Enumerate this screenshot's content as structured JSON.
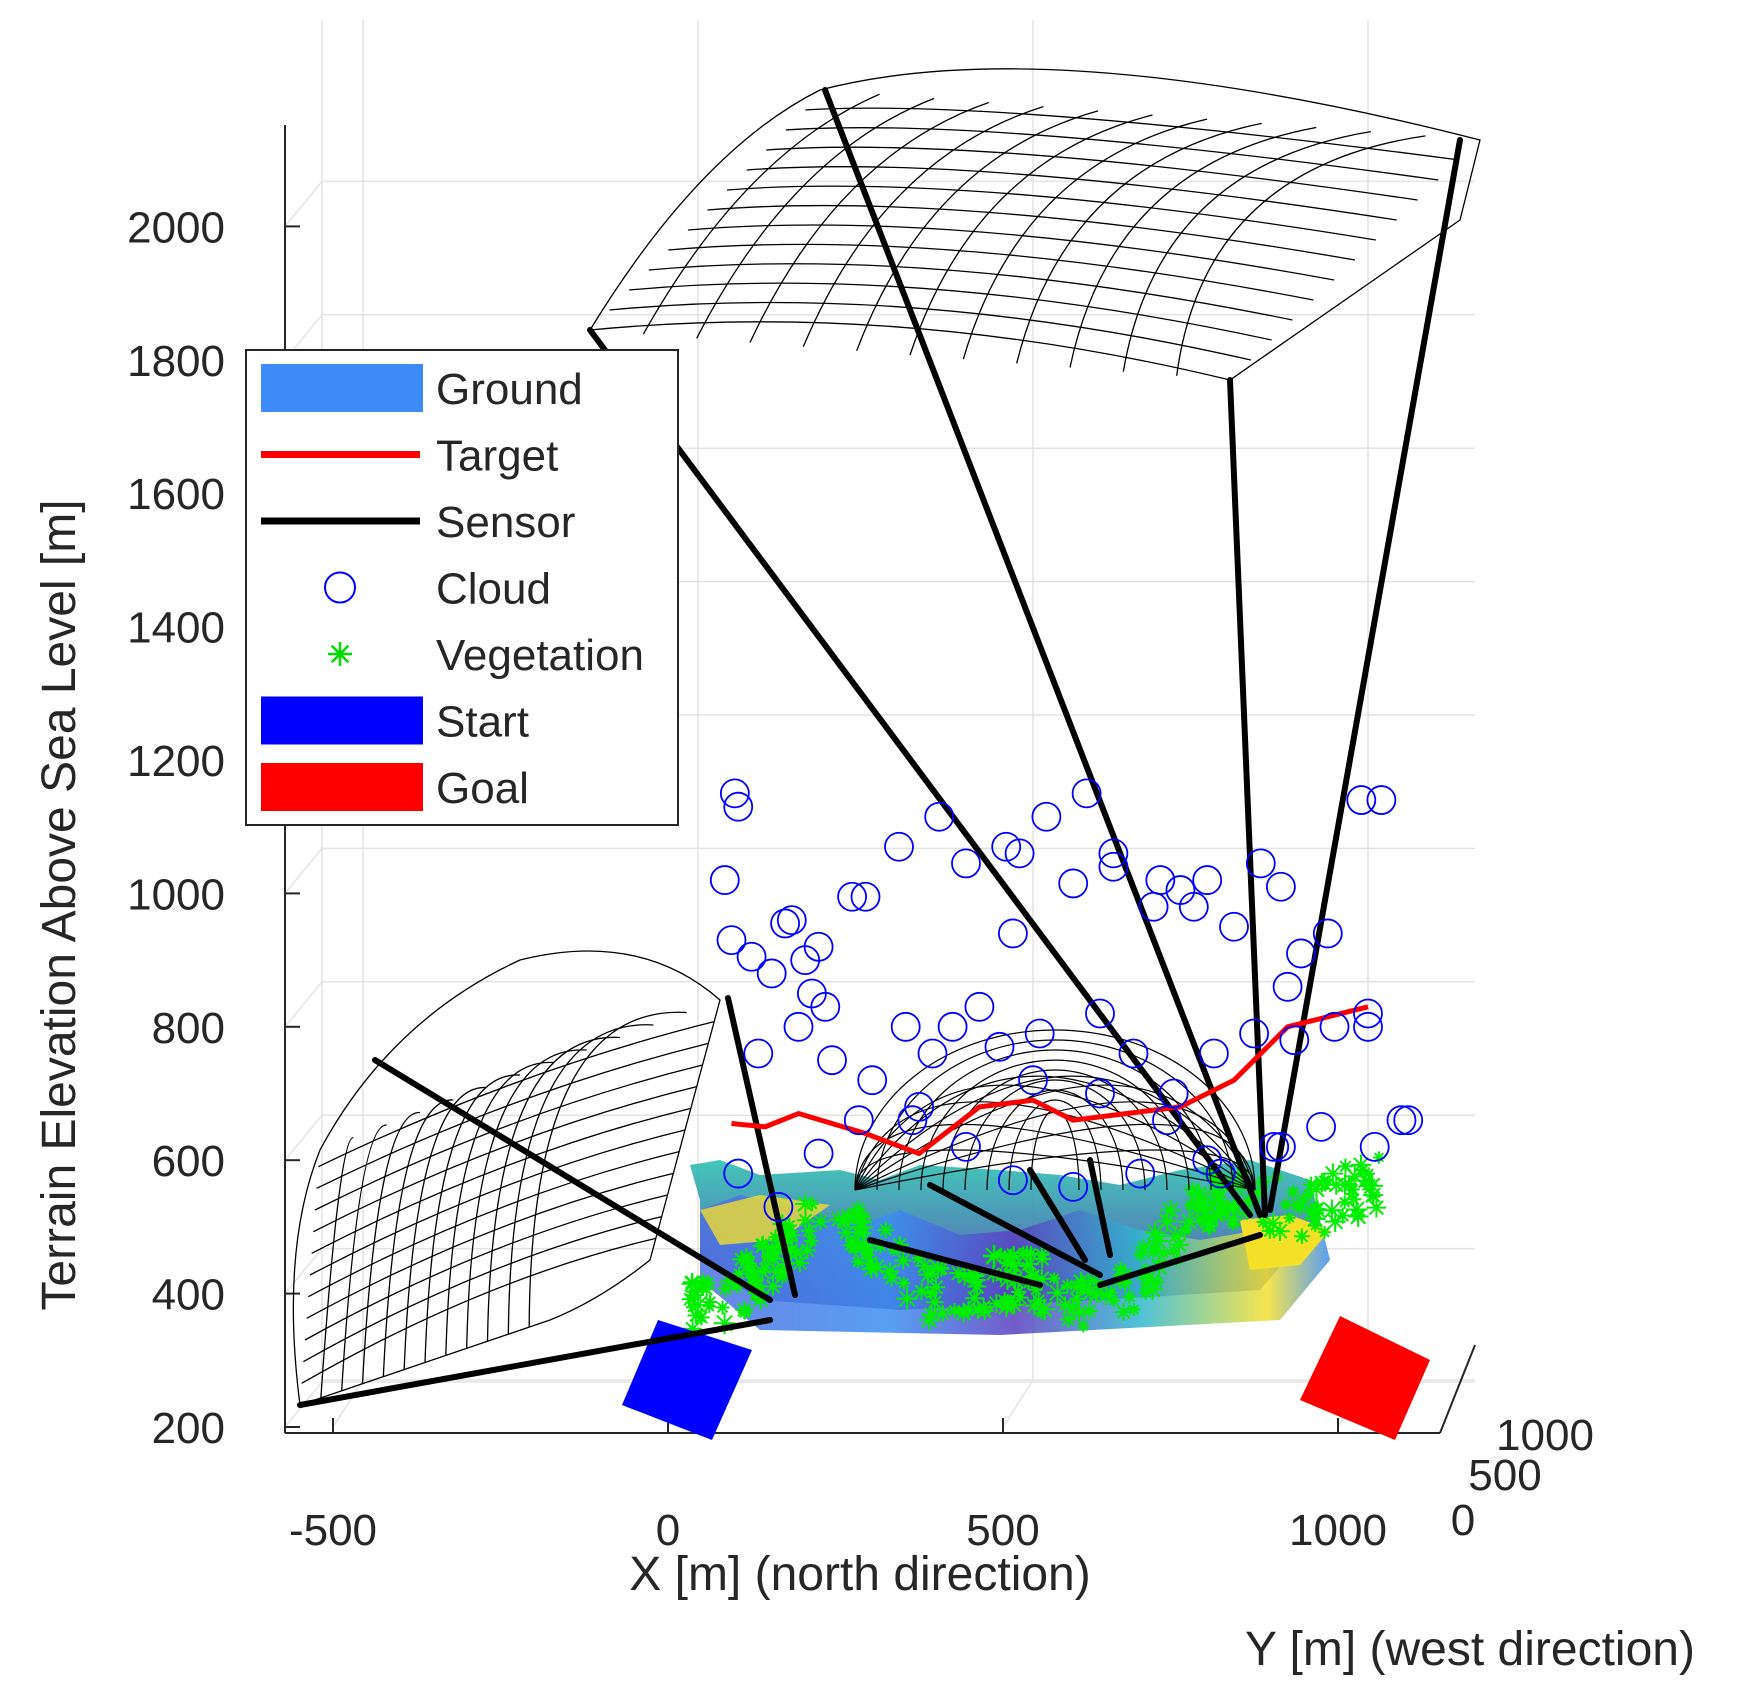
{
  "chart_data": {
    "type": "scatter",
    "title": "",
    "xlabel": "X [m] (north direction)",
    "ylabel": "Y [m] (west direction)",
    "zlabel": "Terrain Elevation Above Sea Level [m]",
    "xlim": [
      -600,
      1150
    ],
    "ylim": [
      0,
      1200
    ],
    "zlim": [
      200,
      2100
    ],
    "x_ticks": [
      -500,
      0,
      500,
      1000
    ],
    "y_ticks": [
      0,
      500,
      1000
    ],
    "z_ticks": [
      200,
      400,
      600,
      800,
      1000,
      1200,
      1400,
      1600,
      1800,
      2000
    ],
    "grid": true,
    "legend_position": "left",
    "legend": [
      {
        "name": "Ground",
        "kind": "patch",
        "color": "#3d8bf8"
      },
      {
        "name": "Target",
        "kind": "line",
        "color": "#ff0000"
      },
      {
        "name": "Sensor",
        "kind": "line",
        "color": "#000000"
      },
      {
        "name": "Cloud",
        "kind": "circle-marker",
        "color": "#0000ff"
      },
      {
        "name": "Vegetation",
        "kind": "star-marker",
        "color": "#00dd00"
      },
      {
        "name": "Start",
        "kind": "patch",
        "color": "#0000ff"
      },
      {
        "name": "Goal",
        "kind": "patch",
        "color": "#ff0000"
      }
    ],
    "series": [
      {
        "name": "Target",
        "type": "line",
        "color": "#ff0000",
        "x": [
          50,
          100,
          150,
          250,
          330,
          420,
          500,
          560,
          640,
          720,
          800,
          880,
          960,
          1000
        ],
        "z": [
          595,
          590,
          610,
          580,
          550,
          620,
          630,
          600,
          610,
          620,
          660,
          740,
          760,
          770
        ]
      },
      {
        "name": "Cloud",
        "type": "scatter",
        "marker": "circle",
        "color": "#0000ff",
        "x": [
          55,
          60,
          40,
          50,
          130,
          140,
          160,
          180,
          190,
          230,
          250,
          300,
          360,
          400,
          460,
          480,
          520,
          580,
          620,
          690,
          720,
          760,
          840,
          870,
          900,
          990,
          1020,
          80,
          110,
          150,
          200,
          260,
          310,
          350,
          420,
          470,
          560,
          620,
          680,
          740,
          800,
          880,
          940,
          1000,
          1050,
          90,
          170,
          240,
          330,
          380,
          450,
          510,
          600,
          650,
          710,
          770,
          830,
          890,
          950,
          1000,
          60,
          120,
          180,
          320,
          400,
          500,
          600,
          700,
          780,
          860,
          930,
          1010,
          1060,
          470,
          560,
          660,
          760,
          870
        ],
        "z": [
          1090,
          1070,
          960,
          870,
          895,
          900,
          840,
          860,
          770,
          935,
          935,
          1010,
          1055,
          985,
          1010,
          1000,
          1055,
          1090,
          1000,
          960,
          945,
          960,
          985,
          950,
          850,
          1080,
          1080,
          845,
          820,
          740,
          690,
          660,
          740,
          700,
          770,
          880,
          955,
          980,
          920,
          920,
          890,
          800,
          880,
          760,
          600,
          700,
          790,
          600,
          620,
          740,
          710,
          730,
          760,
          700,
          640,
          700,
          730,
          720,
          740,
          740,
          520,
          470,
          550,
          600,
          560,
          660,
          640,
          600,
          520,
          560,
          590,
          560,
          600,
          510,
          500,
          520,
          540,
          560
        ]
      },
      {
        "name": "Start",
        "type": "patch",
        "color": "#0000ff",
        "x": 50,
        "z": 300
      },
      {
        "name": "Goal",
        "type": "patch",
        "color": "#ff0000",
        "x": 1030,
        "z": 310
      }
    ]
  },
  "axes_colors": {
    "grid": "#e3e3e3",
    "axis": "#262626",
    "mesh": "#000000"
  }
}
